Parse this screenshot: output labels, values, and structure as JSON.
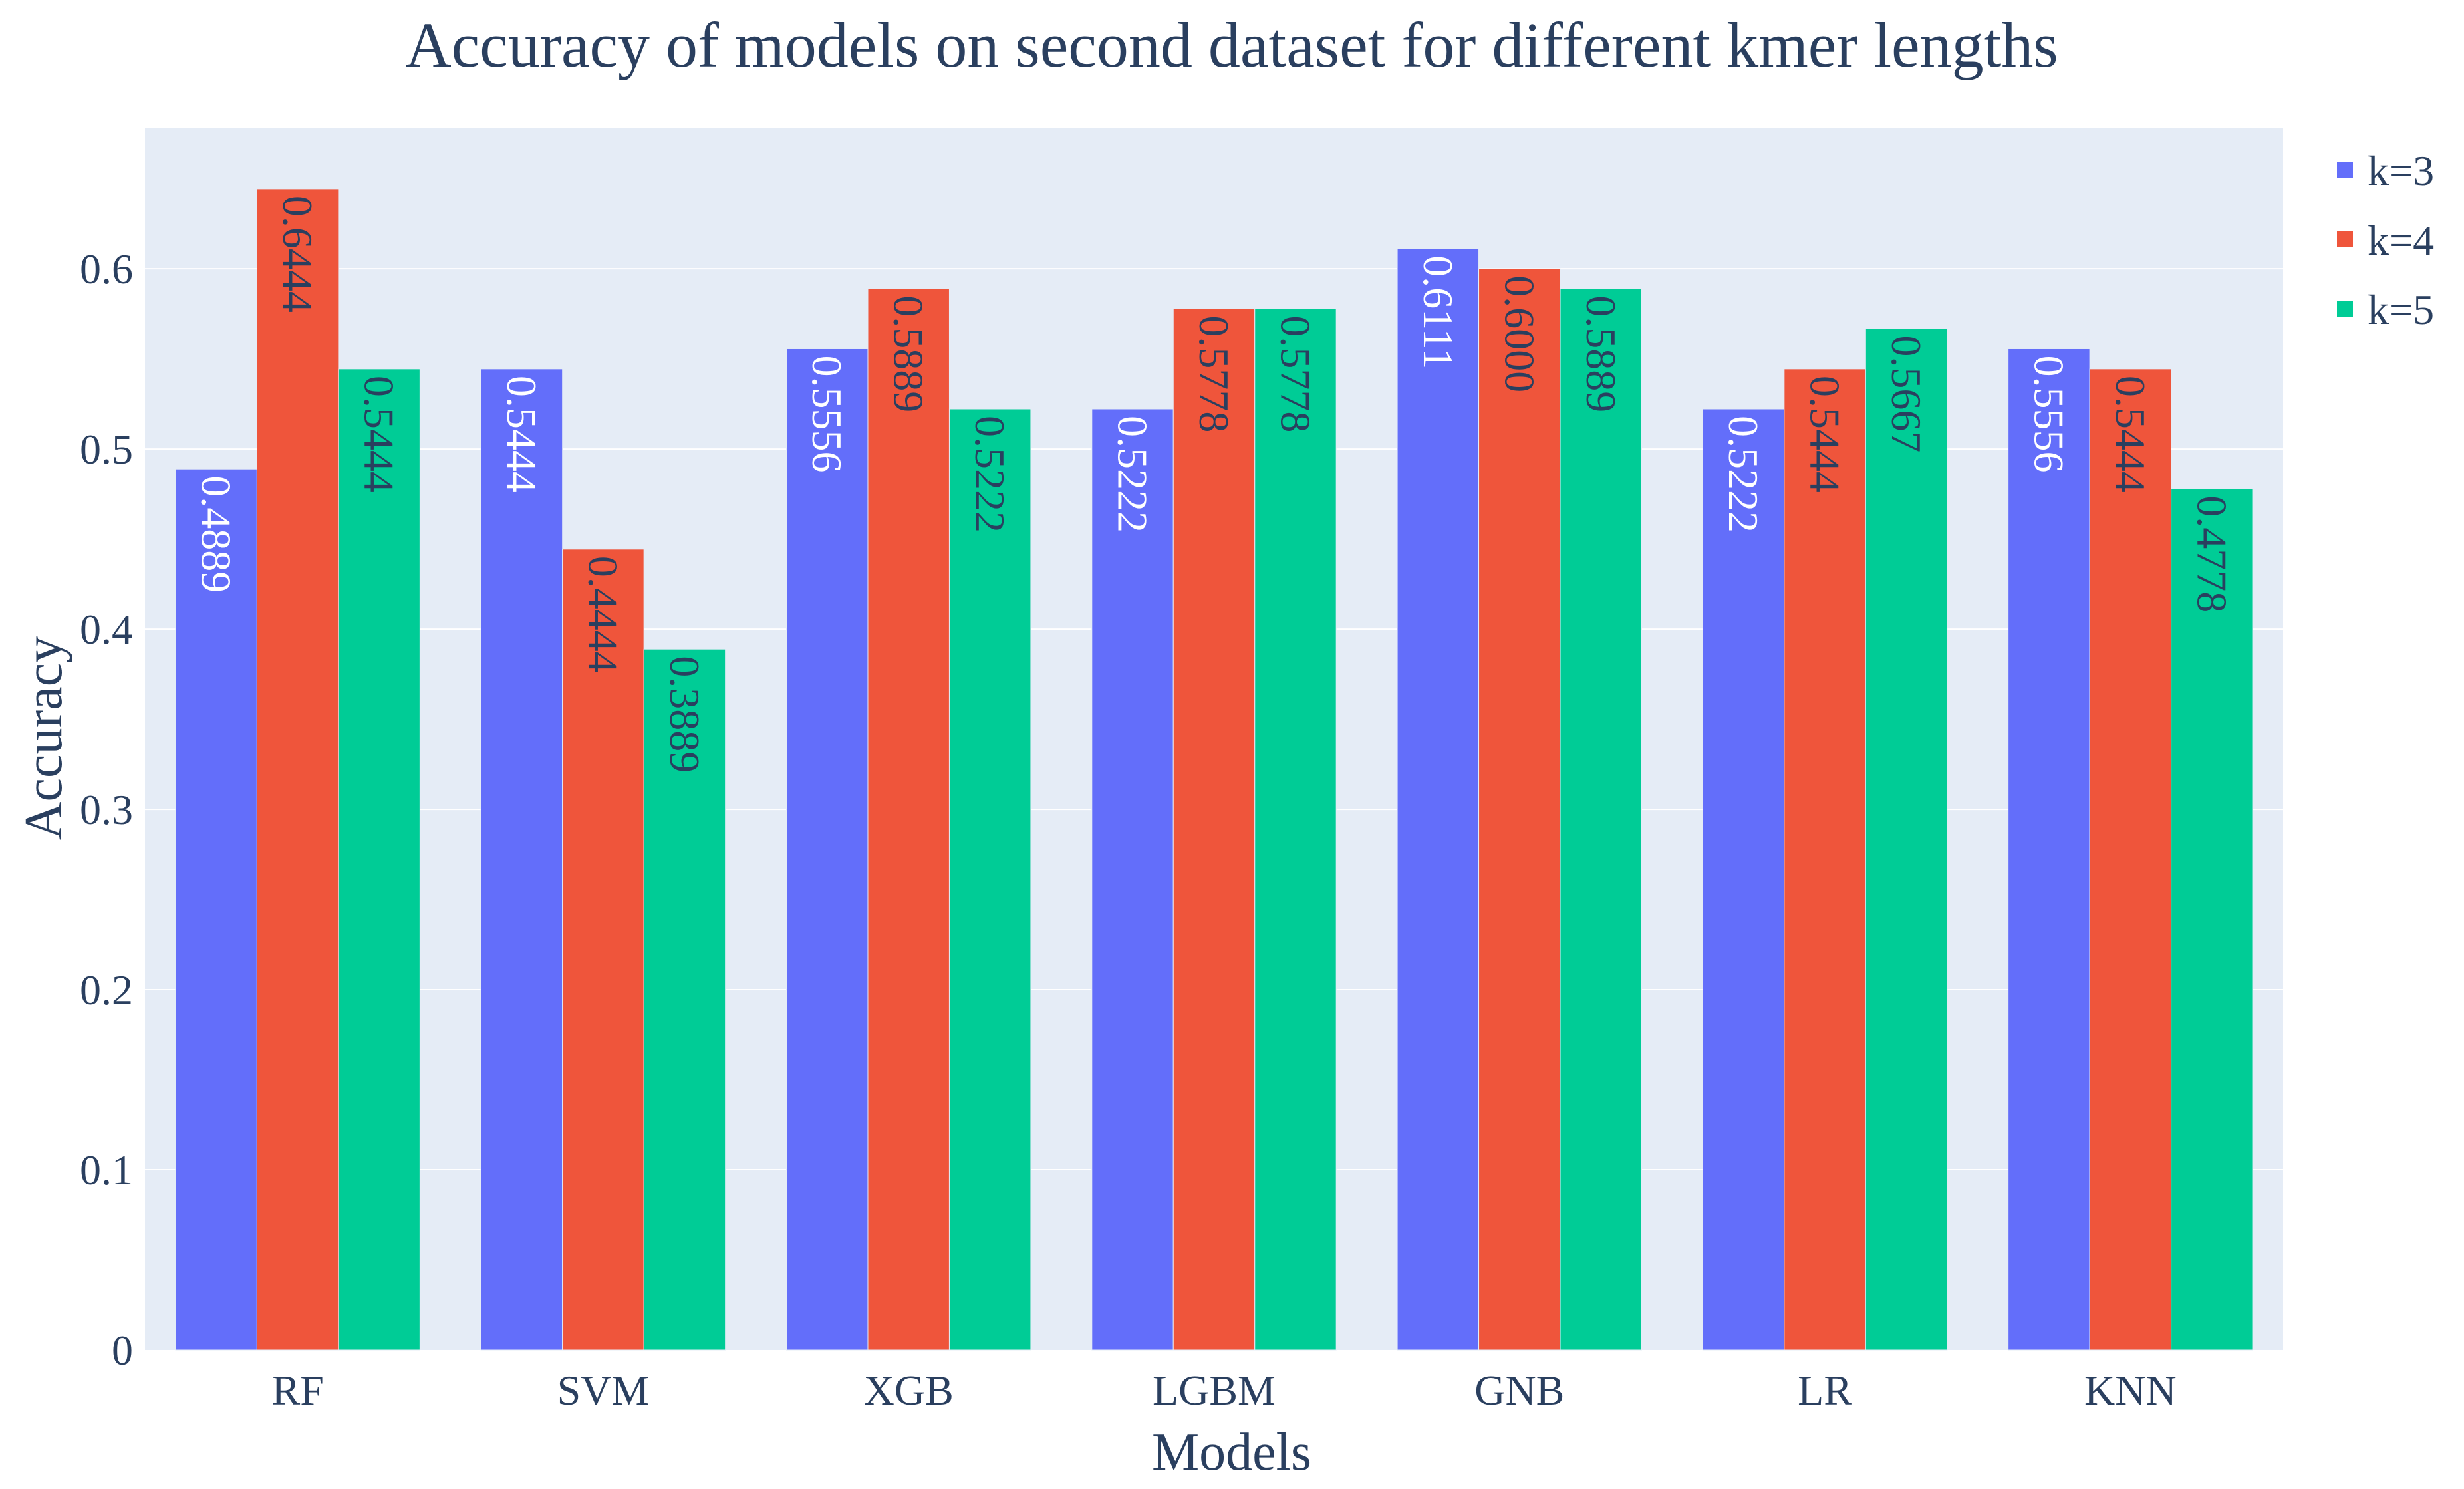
{
  "chart_data": {
    "type": "bar",
    "title": "Accuracy of models on second dataset for different kmer lengths",
    "xlabel": "Models",
    "ylabel": "Accuracy",
    "categories": [
      "RF",
      "SVM",
      "XGB",
      "LGBM",
      "GNB",
      "LR",
      "KNN"
    ],
    "series": [
      {
        "name": "k=3",
        "color": "#636efa",
        "label_color": "#ffffff",
        "values": [
          0.4889,
          0.5444,
          0.5556,
          0.5222,
          0.6111,
          0.5222,
          0.5556
        ],
        "labels": [
          "0.4889",
          "0.5444",
          "0.5556",
          "0.5222",
          "0.6111",
          "0.5222",
          "0.5556"
        ]
      },
      {
        "name": "k=4",
        "color": "#ef553b",
        "label_color": "#2a3f5f",
        "values": [
          0.6444,
          0.4444,
          0.5889,
          0.5778,
          0.6,
          0.5444,
          0.5444
        ],
        "labels": [
          "0.6444",
          "0.4444",
          "0.5889",
          "0.5778",
          "0.6000",
          "0.5444",
          "0.5444"
        ]
      },
      {
        "name": "k=5",
        "color": "#00cc96",
        "label_color": "#2a3f5f",
        "values": [
          0.5444,
          0.3889,
          0.5222,
          0.5778,
          0.5889,
          0.5667,
          0.4778
        ],
        "labels": [
          "0.5444",
          "0.3889",
          "0.5222",
          "0.5778",
          "0.5889",
          "0.5667",
          "0.4778"
        ]
      }
    ],
    "ylim": [
      0,
      0.6783
    ],
    "yticks": [
      0,
      0.1,
      0.2,
      0.3,
      0.4,
      0.5,
      0.6
    ],
    "ytick_labels": [
      "0",
      "0.1",
      "0.2",
      "0.3",
      "0.4",
      "0.5",
      "0.6"
    ],
    "grid": true,
    "legend": "top-right",
    "plot_background": "#e5ecf6",
    "text_color": "#2a3f5f"
  }
}
